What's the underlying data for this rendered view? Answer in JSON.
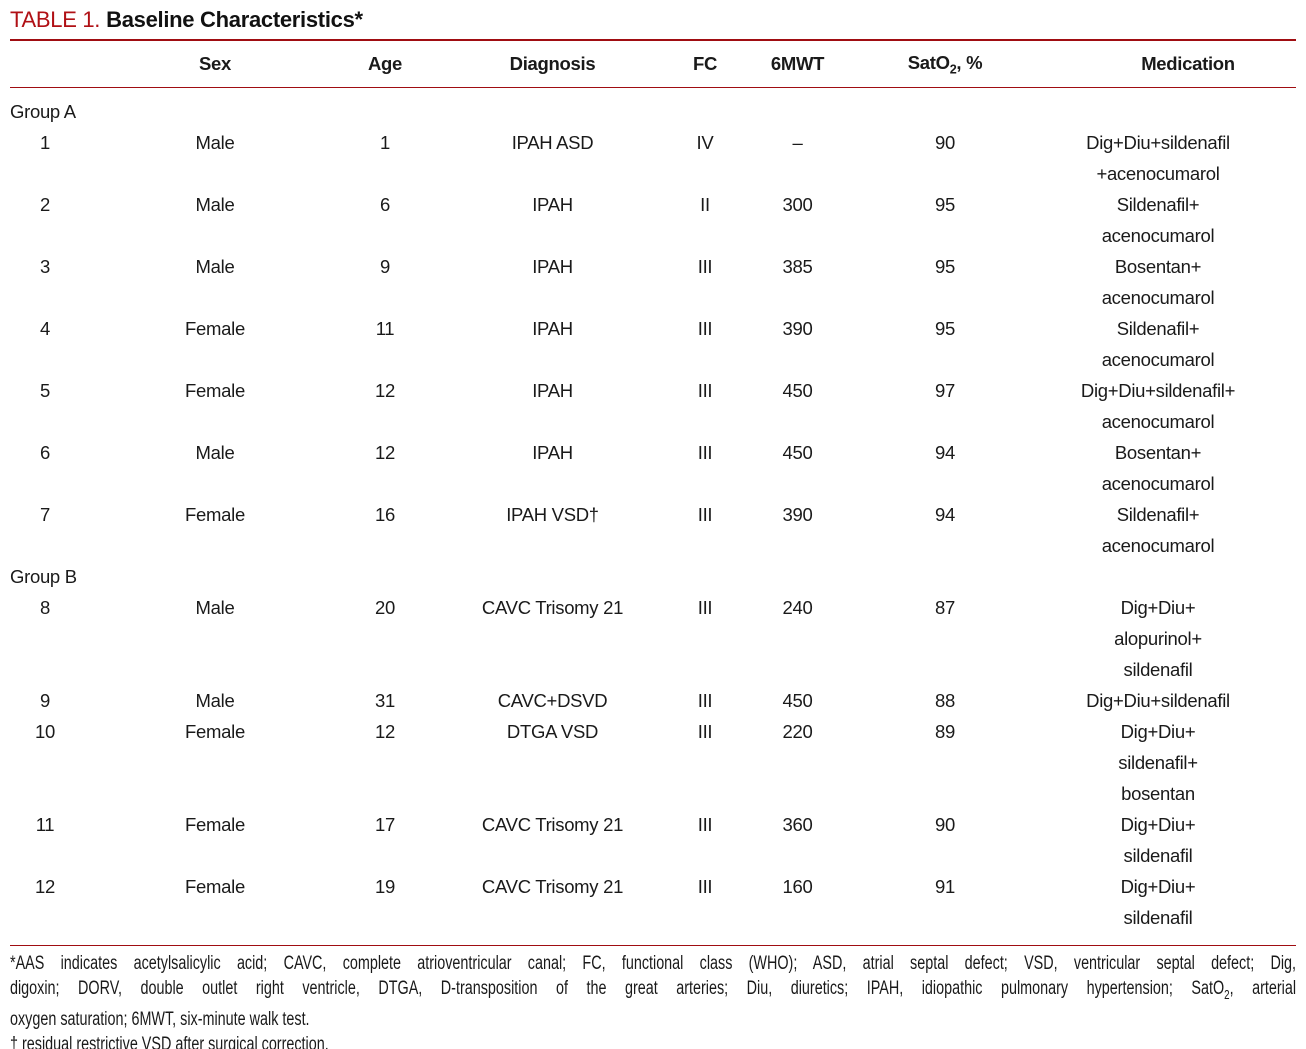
{
  "title": {
    "label": "TABLE 1.",
    "text": "Baseline Characteristics*"
  },
  "colors": {
    "title_red": "#b01015",
    "rule_red": "#a00d12",
    "text": "#1a1a1a"
  },
  "table": {
    "headers": {
      "patient": "",
      "sex": "Sex",
      "age": "Age",
      "diagnosis": "Diagnosis",
      "fc": "FC",
      "six_mwt": "6MWT",
      "sat_pre": "SatO",
      "sat_sub": "2",
      "sat_post": ", %",
      "medication": "Medication"
    },
    "groups": [
      {
        "label": "Group A",
        "rows": [
          {
            "id": "1",
            "sex": "Male",
            "age": "1",
            "diagnosis": "IPAH ASD",
            "fc": "IV",
            "six_mwt": "–",
            "sat": "90",
            "medication": [
              "Dig+Diu+sildenafil",
              "+acenocumarol"
            ]
          },
          {
            "id": "2",
            "sex": "Male",
            "age": "6",
            "diagnosis": "IPAH",
            "fc": "II",
            "six_mwt": "300",
            "sat": "95",
            "medication": [
              "Sildenafil+",
              "acenocumarol"
            ]
          },
          {
            "id": "3",
            "sex": "Male",
            "age": "9",
            "diagnosis": "IPAH",
            "fc": "III",
            "six_mwt": "385",
            "sat": "95",
            "medication": [
              "Bosentan+",
              "acenocumarol"
            ]
          },
          {
            "id": "4",
            "sex": "Female",
            "age": "11",
            "diagnosis": "IPAH",
            "fc": "III",
            "six_mwt": "390",
            "sat": "95",
            "medication": [
              "Sildenafil+",
              "acenocumarol"
            ]
          },
          {
            "id": "5",
            "sex": "Female",
            "age": "12",
            "diagnosis": "IPAH",
            "fc": "III",
            "six_mwt": "450",
            "sat": "97",
            "medication": [
              "Dig+Diu+sildenafil+",
              "acenocumarol"
            ]
          },
          {
            "id": "6",
            "sex": "Male",
            "age": "12",
            "diagnosis": "IPAH",
            "fc": "III",
            "six_mwt": "450",
            "sat": "94",
            "medication": [
              "Bosentan+",
              "acenocumarol"
            ]
          },
          {
            "id": "7",
            "sex": "Female",
            "age": "16",
            "diagnosis": "IPAH VSD†",
            "fc": "III",
            "six_mwt": "390",
            "sat": "94",
            "medication": [
              "Sildenafil+",
              "acenocumarol"
            ]
          }
        ]
      },
      {
        "label": "Group B",
        "rows": [
          {
            "id": "8",
            "sex": "Male",
            "age": "20",
            "diagnosis": "CAVC Trisomy 21",
            "fc": "III",
            "six_mwt": "240",
            "sat": "87",
            "medication": [
              "Dig+Diu+",
              "alopurinol+",
              "sildenafil"
            ]
          },
          {
            "id": "9",
            "sex": "Male",
            "age": "31",
            "diagnosis": "CAVC+DSVD",
            "fc": "III",
            "six_mwt": "450",
            "sat": "88",
            "medication": [
              "Dig+Diu+sildenafil"
            ]
          },
          {
            "id": "10",
            "sex": "Female",
            "age": "12",
            "diagnosis": "DTGA VSD",
            "fc": "III",
            "six_mwt": "220",
            "sat": "89",
            "medication": [
              "Dig+Diu+",
              "sildenafil+",
              "bosentan"
            ]
          },
          {
            "id": "11",
            "sex": "Female",
            "age": "17",
            "diagnosis": "CAVC Trisomy 21",
            "fc": "III",
            "six_mwt": "360",
            "sat": "90",
            "medication": [
              "Dig+Diu+",
              "sildenafil"
            ]
          },
          {
            "id": "12",
            "sex": "Female",
            "age": "19",
            "diagnosis": "CAVC Trisomy 21",
            "fc": "III",
            "six_mwt": "160",
            "sat": "91",
            "medication": [
              "Dig+Diu+",
              "sildenafil"
            ]
          }
        ]
      }
    ]
  },
  "footnotes": {
    "lines": [
      {
        "full_justify": true,
        "segments": [
          {
            "t": "*AAS indicates acetylsalicylic acid; CAVC, complete atrioventricular canal; FC, functional class (WHO); ASD, atrial septal defect; VSD, ventricular septal defect; Dig,"
          }
        ]
      },
      {
        "full_justify": true,
        "segments": [
          {
            "t": "digoxin; DORV, double outlet right ventricle, DTGA, D-transposition of the great arteries; Diu, diuretics; IPAH, idiopathic pulmonary hypertension; SatO"
          },
          {
            "t": "2",
            "sub": true
          },
          {
            "t": ", arterial"
          }
        ]
      },
      {
        "full_justify": false,
        "segments": [
          {
            "t": "oxygen saturation; 6MWT, six-minute walk test."
          }
        ]
      },
      {
        "full_justify": false,
        "segments": [
          {
            "t": "† residual restrictive VSD after surgical correction."
          }
        ]
      }
    ]
  }
}
